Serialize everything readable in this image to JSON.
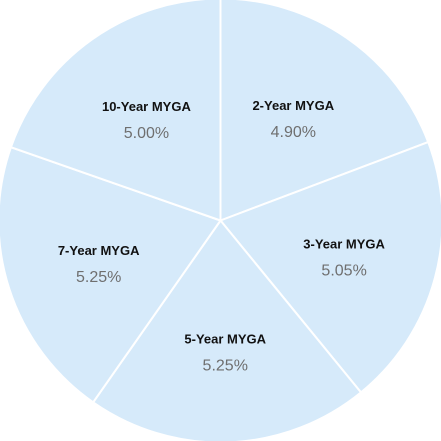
{
  "chart_data": {
    "type": "pie",
    "slices": [
      {
        "label": "2-Year MYGA",
        "value": 4.9,
        "display": "4.90%"
      },
      {
        "label": "3-Year MYGA",
        "value": 5.05,
        "display": "5.05%"
      },
      {
        "label": "5-Year MYGA",
        "value": 5.25,
        "display": "5.25%"
      },
      {
        "label": "7-Year MYGA",
        "value": 5.25,
        "display": "5.25%"
      },
      {
        "label": "10-Year MYGA",
        "value": 5.0,
        "display": "5.00%"
      }
    ],
    "start_angle": "12 o'clock",
    "direction": "clockwise",
    "colors": {
      "slice_fill": "#d6eafa",
      "slice_border": "#ffffff",
      "label_text": "#111111",
      "value_text": "#6f6f6f"
    },
    "legend": "none"
  }
}
